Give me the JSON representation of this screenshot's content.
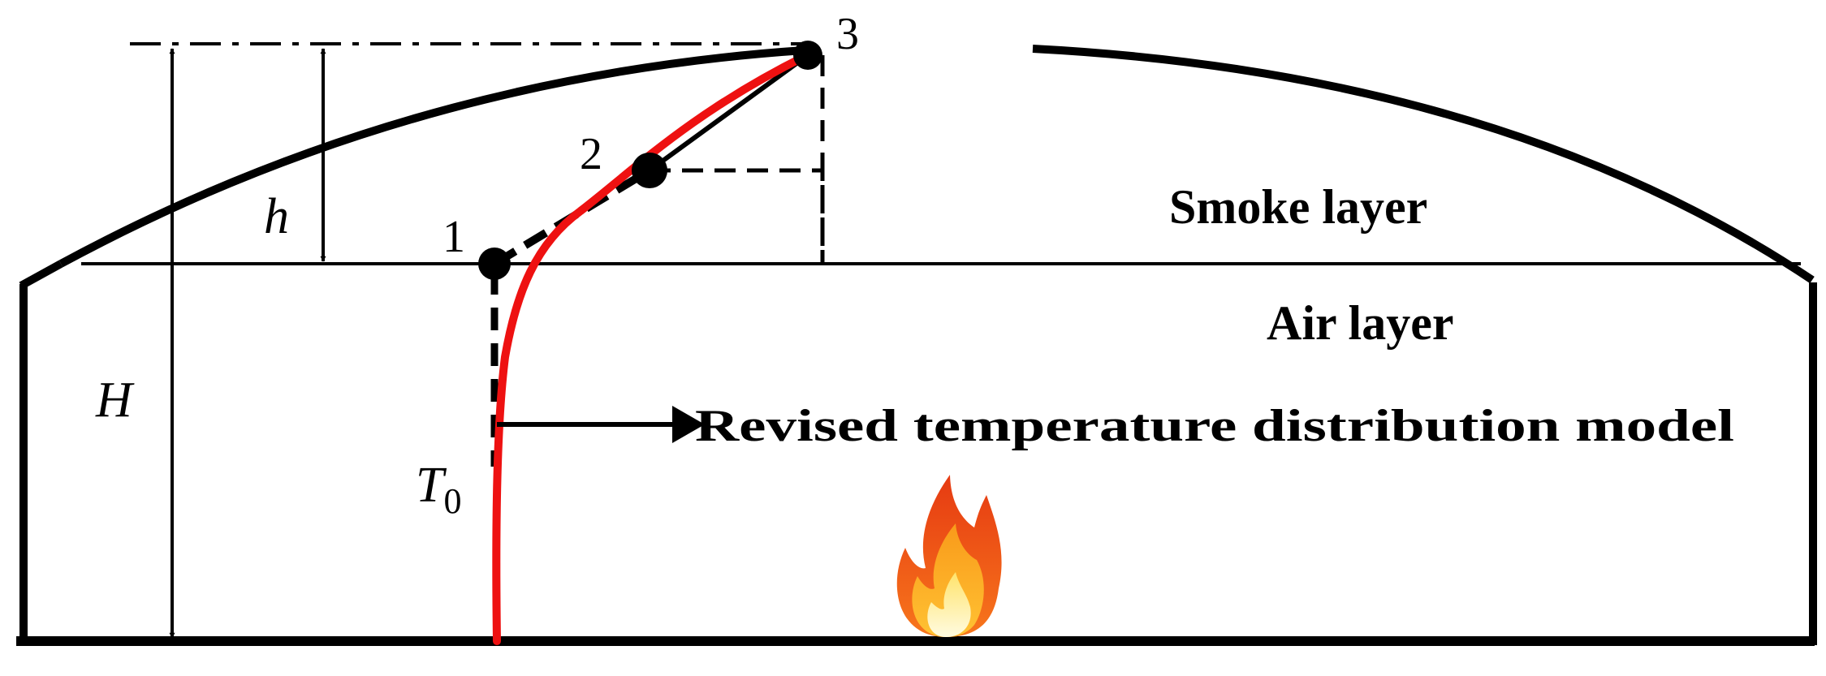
{
  "labels": {
    "smoke_layer": "Smoke layer",
    "air_layer": "Air layer",
    "model": "Revised temperature distribution model",
    "H": "H",
    "h": "h",
    "T": "T",
    "T_sub": "0",
    "point1": "1",
    "point2": "2",
    "point3": "3"
  },
  "colors": {
    "line": "#000000",
    "temperature_curve": "#ee1111",
    "background": "#ffffff"
  },
  "icons": {
    "fire": "flame-icon"
  }
}
